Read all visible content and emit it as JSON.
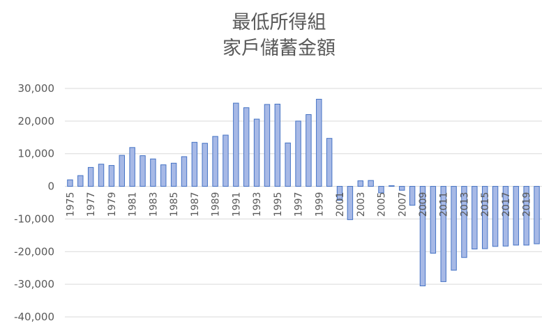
{
  "chart_data": {
    "type": "bar",
    "title_lines": [
      "最低所得組",
      "家戶儲蓄金額"
    ],
    "categories": [
      1975,
      1976,
      1977,
      1978,
      1979,
      1980,
      1981,
      1982,
      1983,
      1984,
      1985,
      1986,
      1987,
      1988,
      1989,
      1990,
      1991,
      1992,
      1993,
      1994,
      1995,
      1996,
      1997,
      1998,
      1999,
      2000,
      2001,
      2002,
      2003,
      2004,
      2005,
      2006,
      2007,
      2008,
      2009,
      2010,
      2011,
      2012,
      2013,
      2014,
      2015,
      2016,
      2017,
      2018,
      2019,
      2020
    ],
    "x_tick_labels": [
      "1975",
      "1977",
      "1979",
      "1981",
      "1983",
      "1985",
      "1987",
      "1989",
      "1991",
      "1993",
      "1995",
      "1997",
      "1999",
      "2001",
      "2003",
      "2005",
      "2007",
      "2009",
      "2011",
      "2013",
      "2015",
      "2017",
      "2019"
    ],
    "values": [
      2000,
      3300,
      5800,
      6800,
      6400,
      9500,
      11900,
      9400,
      8400,
      6600,
      7100,
      9100,
      13500,
      13200,
      15300,
      15700,
      25500,
      24100,
      20600,
      25100,
      25200,
      13300,
      20000,
      22000,
      26700,
      14700,
      -4300,
      -10200,
      1700,
      1800,
      -2000,
      200,
      -1200,
      -5800,
      -30500,
      -20500,
      -29200,
      -25700,
      -21800,
      -19200,
      -19100,
      -18400,
      -18300,
      -18000,
      -18000,
      -17600
    ],
    "ylim": [
      -40000,
      30000
    ],
    "y_ticks": [
      -40000,
      -30000,
      -20000,
      -10000,
      0,
      10000,
      20000,
      30000
    ],
    "y_tick_labels": [
      "-40,000",
      "-30,000",
      "-20,000",
      "-10,000",
      "0",
      "10,000",
      "20,000",
      "30,000"
    ],
    "grid": true,
    "legend": false,
    "colors": {
      "bar_fill": "#a7b9e6",
      "bar_stroke": "#4472c4",
      "grid": "#d9d9d9",
      "text": "#595959"
    }
  }
}
